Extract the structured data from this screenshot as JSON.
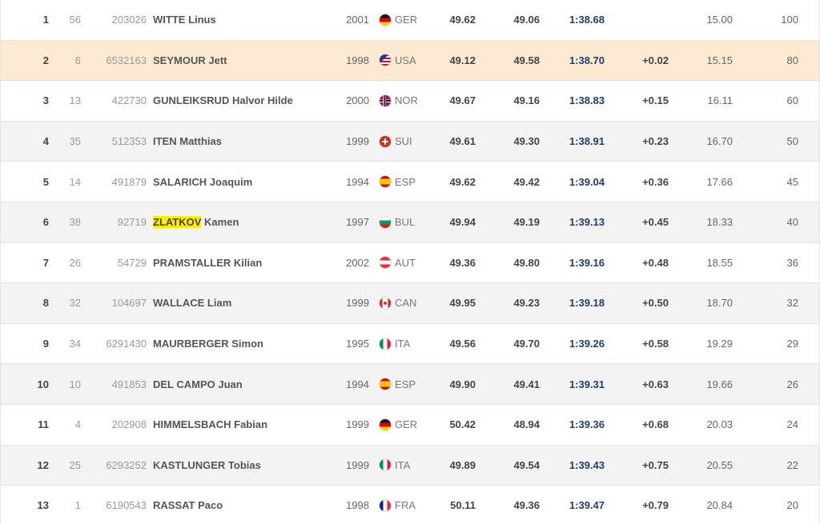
{
  "results": [
    {
      "rank": "1",
      "bib": "56",
      "fis_code": "203026",
      "surname": "WITTE",
      "firstname": "Linus",
      "birth": "2001",
      "nation": "GER",
      "flag_icon": "germany-flag-icon",
      "run1": "49.62",
      "run2": "49.06",
      "total": "1:38.68",
      "diff": "",
      "fis_points": "15.00",
      "cup_points": "100"
    },
    {
      "rank": "2",
      "bib": "6",
      "fis_code": "6532163",
      "surname": "SEYMOUR",
      "firstname": "Jett",
      "birth": "1998",
      "nation": "USA",
      "flag_icon": "usa-flag-icon",
      "run1": "49.12",
      "run2": "49.58",
      "total": "1:38.70",
      "diff": "+0.02",
      "fis_points": "15.15",
      "cup_points": "80"
    },
    {
      "rank": "3",
      "bib": "13",
      "fis_code": "422730",
      "surname": "GUNLEIKSRUD",
      "firstname": "Halvor Hilde",
      "birth": "2000",
      "nation": "NOR",
      "flag_icon": "norway-flag-icon",
      "run1": "49.67",
      "run2": "49.16",
      "total": "1:38.83",
      "diff": "+0.15",
      "fis_points": "16.11",
      "cup_points": "60"
    },
    {
      "rank": "4",
      "bib": "35",
      "fis_code": "512353",
      "surname": "ITEN",
      "firstname": "Matthias",
      "birth": "1999",
      "nation": "SUI",
      "flag_icon": "switzerland-flag-icon",
      "run1": "49.61",
      "run2": "49.30",
      "total": "1:38.91",
      "diff": "+0.23",
      "fis_points": "16.70",
      "cup_points": "50"
    },
    {
      "rank": "5",
      "bib": "14",
      "fis_code": "491879",
      "surname": "SALARICH",
      "firstname": "Joaquim",
      "birth": "1994",
      "nation": "ESP",
      "flag_icon": "spain-flag-icon",
      "run1": "49.62",
      "run2": "49.42",
      "total": "1:39.04",
      "diff": "+0.36",
      "fis_points": "17.66",
      "cup_points": "45"
    },
    {
      "rank": "6",
      "bib": "38",
      "fis_code": "92719",
      "surname": "ZLATKOV",
      "firstname": "Kamen",
      "birth": "1997",
      "nation": "BUL",
      "flag_icon": "bulgaria-flag-icon",
      "run1": "49.94",
      "run2": "49.19",
      "total": "1:39.13",
      "diff": "+0.45",
      "fis_points": "18.33",
      "cup_points": "40"
    },
    {
      "rank": "7",
      "bib": "26",
      "fis_code": "54729",
      "surname": "PRAMSTALLER",
      "firstname": "Kilian",
      "birth": "2002",
      "nation": "AUT",
      "flag_icon": "austria-flag-icon",
      "run1": "49.36",
      "run2": "49.80",
      "total": "1:39.16",
      "diff": "+0.48",
      "fis_points": "18.55",
      "cup_points": "36"
    },
    {
      "rank": "8",
      "bib": "32",
      "fis_code": "104697",
      "surname": "WALLACE",
      "firstname": "Liam",
      "birth": "1999",
      "nation": "CAN",
      "flag_icon": "canada-flag-icon",
      "run1": "49.95",
      "run2": "49.23",
      "total": "1:39.18",
      "diff": "+0.50",
      "fis_points": "18.70",
      "cup_points": "32"
    },
    {
      "rank": "9",
      "bib": "34",
      "fis_code": "6291430",
      "surname": "MAURBERGER",
      "firstname": "Simon",
      "birth": "1995",
      "nation": "ITA",
      "flag_icon": "italy-flag-icon",
      "run1": "49.56",
      "run2": "49.70",
      "total": "1:39.26",
      "diff": "+0.58",
      "fis_points": "19.29",
      "cup_points": "29"
    },
    {
      "rank": "10",
      "bib": "10",
      "fis_code": "491853",
      "surname": "DEL CAMPO",
      "firstname": "Juan",
      "birth": "1994",
      "nation": "ESP",
      "flag_icon": "spain-flag-icon",
      "run1": "49.90",
      "run2": "49.41",
      "total": "1:39.31",
      "diff": "+0.63",
      "fis_points": "19.66",
      "cup_points": "26"
    },
    {
      "rank": "11",
      "bib": "4",
      "fis_code": "202908",
      "surname": "HIMMELSBACH",
      "firstname": "Fabian",
      "birth": "1999",
      "nation": "GER",
      "flag_icon": "germany-flag-icon",
      "run1": "50.42",
      "run2": "48.94",
      "total": "1:39.36",
      "diff": "+0.68",
      "fis_points": "20.03",
      "cup_points": "24"
    },
    {
      "rank": "12",
      "bib": "25",
      "fis_code": "6293252",
      "surname": "KASTLUNGER",
      "firstname": "Tobias",
      "birth": "1999",
      "nation": "ITA",
      "flag_icon": "italy-flag-icon",
      "run1": "49.89",
      "run2": "49.54",
      "total": "1:39.43",
      "diff": "+0.75",
      "fis_points": "20.55",
      "cup_points": "22"
    },
    {
      "rank": "13",
      "bib": "1",
      "fis_code": "6190543",
      "surname": "RASSAT",
      "firstname": "Paco",
      "birth": "1998",
      "nation": "FRA",
      "flag_icon": "france-flag-icon",
      "run1": "50.11",
      "run2": "49.36",
      "total": "1:39.47",
      "diff": "+0.79",
      "fis_points": "20.84",
      "cup_points": "20"
    }
  ],
  "highlight_row_rank": "2",
  "highlight_surname_rank": "6",
  "colors": {
    "row_highlight": "#fcebd2",
    "row_alt": "#f3f3f3",
    "total_time": "#1f3d73",
    "name_marker": "#ffee00"
  }
}
